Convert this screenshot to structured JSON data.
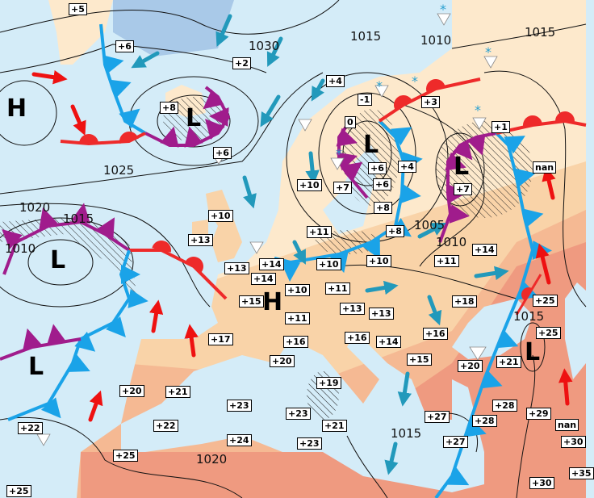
{
  "colors": {
    "sea": "#d4ecf8",
    "land_cool": "#fde9cc",
    "land_mild": "#f9d3a8",
    "land_warm": "#f5b993",
    "land_hot": "#ef9a80",
    "ice": "#a9c9e8",
    "cold_front": "#1aa3e8",
    "warm_front": "#ee2a2a",
    "occluded_front": "#a01c8c",
    "wind_arrow_cold": "#2299bb",
    "wind_arrow_warm": "#ee1111"
  },
  "centers": [
    "H",
    "L",
    "L",
    "L",
    "L",
    "H",
    "L",
    "L"
  ],
  "isobar_labels": [
    "1030",
    "1015",
    "1010",
    "1015",
    "1025",
    "1020",
    "1015",
    "1010",
    "1005",
    "1010",
    "1015",
    "1015",
    "1020"
  ],
  "temperatures": [
    "+5",
    "+6",
    "+2",
    "+8",
    "+6",
    "+10",
    "+13",
    "+4",
    "-1",
    "+3",
    "0",
    "+1",
    "nan",
    "+6",
    "+4",
    "+6",
    "+7",
    "+7",
    "+10",
    "+8",
    "+8",
    "+11",
    "+11",
    "+14",
    "+13",
    "+14",
    "+10",
    "+10",
    "+14",
    "+10",
    "+11",
    "+15",
    "+13",
    "+13",
    "+11",
    "+18",
    "+25",
    "+17",
    "+16",
    "+16",
    "+14",
    "+16",
    "+25",
    "+20",
    "+15",
    "+20",
    "+21",
    "+21",
    "+20",
    "+19",
    "+23",
    "+28",
    "+29",
    "nan",
    "+23",
    "+27",
    "+28",
    "+22",
    "+22",
    "+21",
    "+24",
    "+23",
    "+27",
    "+30",
    "+25",
    "+35",
    "+30",
    "+25"
  ],
  "symbols": {
    "snow": "*"
  }
}
